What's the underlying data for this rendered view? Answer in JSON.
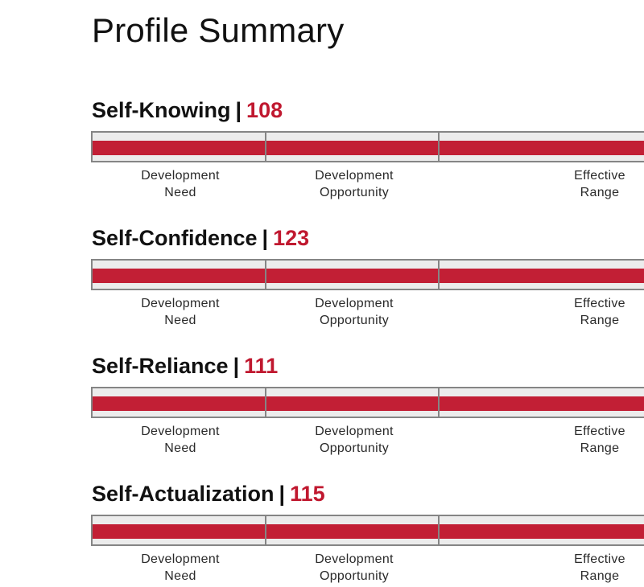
{
  "page": {
    "title": "Profile Summary"
  },
  "range_labels": [
    {
      "line1": "Development",
      "line2": "Need"
    },
    {
      "line1": "Development",
      "line2": "Opportunity"
    },
    {
      "line1": "Effective",
      "line2": "Range"
    }
  ],
  "sections": [
    {
      "name": "Self-Knowing",
      "separator": "|",
      "score": "108",
      "bar_fill_fraction": 1.0
    },
    {
      "name": "Self-Confidence",
      "separator": "|",
      "score": "123",
      "bar_fill_fraction": 1.0
    },
    {
      "name": "Self-Reliance",
      "separator": "|",
      "score": "111",
      "bar_fill_fraction": 1.0
    },
    {
      "name": "Self-Actualization",
      "separator": "|",
      "score": "115",
      "bar_fill_fraction": 1.0
    }
  ],
  "colors": {
    "accent": "#c0182f",
    "bar_fill": "#c21f35",
    "bar_track": "#ececec",
    "bar_border": "#858585"
  }
}
